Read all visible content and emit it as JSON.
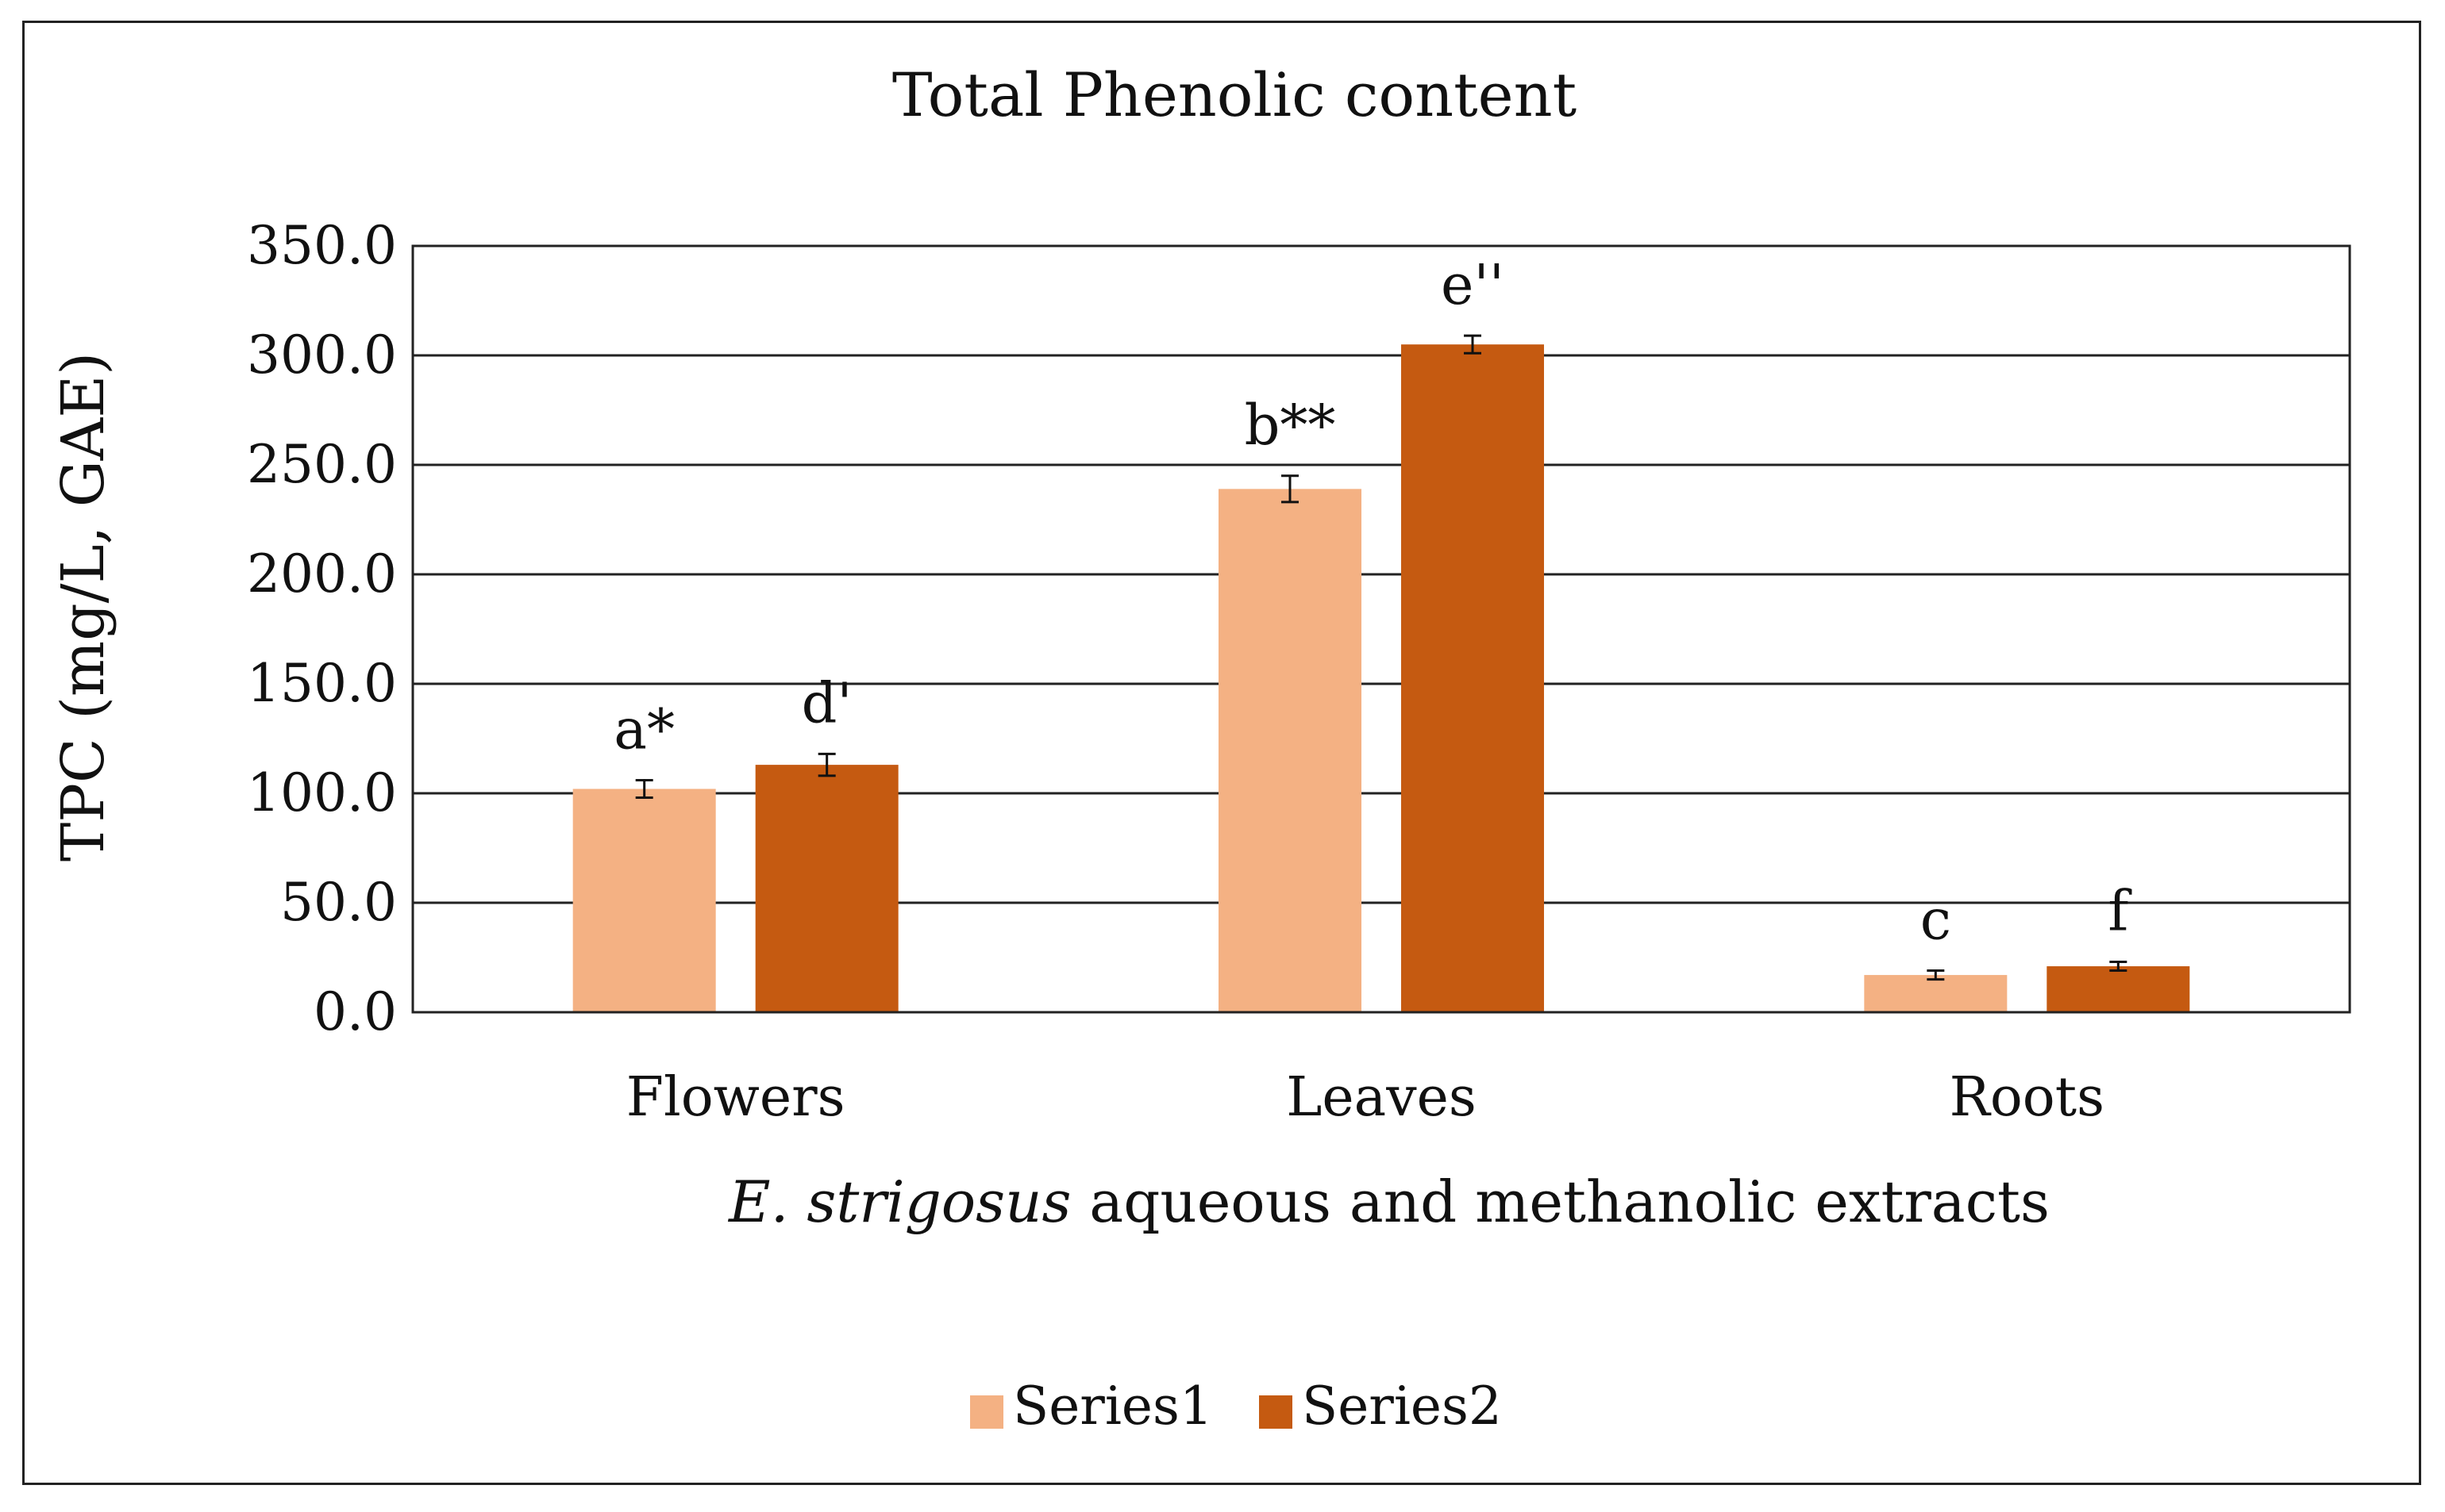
{
  "chart_data": {
    "type": "bar",
    "title": "Total Phenolic content",
    "ylabel": "TPC (mg/L, GAE)",
    "xlabel_italic": "E. strigosus",
    "xlabel_rest": " aqueous and methanolic extracts",
    "categories": [
      "Flowers",
      "Leaves",
      "Roots"
    ],
    "ylim": [
      0,
      350
    ],
    "yticks": [
      "0.0",
      "50.0",
      "100.0",
      "150.0",
      "200.0",
      "250.0",
      "300.0",
      "350.0"
    ],
    "grid": true,
    "legend_position": "bottom",
    "series": [
      {
        "name": "Series1",
        "color": "#F4B183",
        "values": [
          102,
          239,
          17
        ],
        "errors": [
          4,
          6,
          2
        ],
        "annotations": [
          "a*",
          "b**",
          "c"
        ]
      },
      {
        "name": "Series2",
        "color": "#C55A11",
        "values": [
          113,
          305,
          21
        ],
        "errors": [
          5,
          4,
          2
        ],
        "annotations": [
          "d'",
          "e''",
          "f"
        ]
      }
    ]
  }
}
